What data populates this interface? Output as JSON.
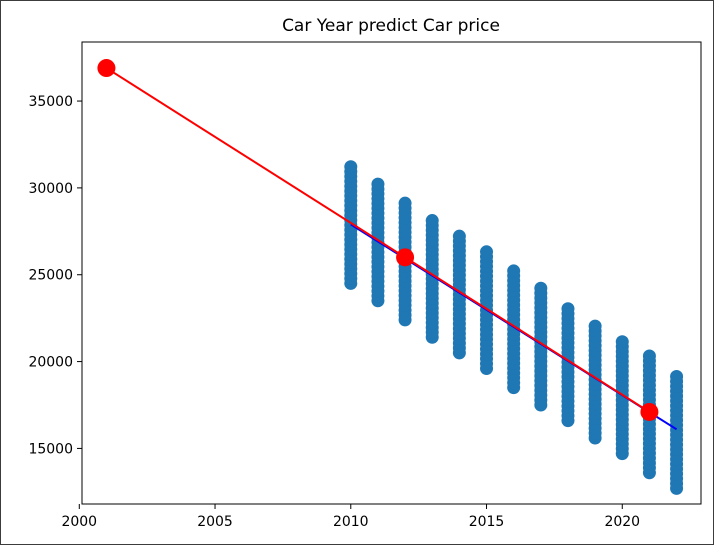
{
  "chart_data": {
    "type": "scatter",
    "title": "Car Year predict Car price",
    "xlabel": "",
    "ylabel": "",
    "xlim": [
      2000.1,
      2022.9
    ],
    "ylim": [
      11800,
      38400
    ],
    "x_ticks": [
      2000,
      2005,
      2010,
      2015,
      2020
    ],
    "y_ticks": [
      15000,
      20000,
      25000,
      30000,
      35000
    ],
    "grid": false,
    "legend": "none",
    "colors": {
      "scatter": "#1f77b4",
      "fit_line": "#0000ff",
      "prediction_line": "#ff0000",
      "prediction_points": "#ff0000"
    },
    "scatter_series": [
      {
        "x": 2010,
        "y_min": 24500,
        "y_max": 31300
      },
      {
        "x": 2011,
        "y_min": 23500,
        "y_max": 30400
      },
      {
        "x": 2012,
        "y_min": 22400,
        "y_max": 29300
      },
      {
        "x": 2013,
        "y_min": 21400,
        "y_max": 28300
      },
      {
        "x": 2014,
        "y_min": 20500,
        "y_max": 27400
      },
      {
        "x": 2015,
        "y_min": 19600,
        "y_max": 26400
      },
      {
        "x": 2016,
        "y_min": 18500,
        "y_max": 25400
      },
      {
        "x": 2017,
        "y_min": 17500,
        "y_max": 24300
      },
      {
        "x": 2018,
        "y_min": 16600,
        "y_max": 23200
      },
      {
        "x": 2019,
        "y_min": 15600,
        "y_max": 22300
      },
      {
        "x": 2020,
        "y_min": 14700,
        "y_max": 21400
      },
      {
        "x": 2021,
        "y_min": 13600,
        "y_max": 20400
      },
      {
        "x": 2022,
        "y_min": 12700,
        "y_max": 19400
      }
    ],
    "fit_line": {
      "x": [
        2010,
        2022
      ],
      "y": [
        27900,
        16100
      ]
    },
    "prediction_line": {
      "x": [
        2001,
        2012,
        2021
      ],
      "y": [
        36900,
        26000,
        17100
      ]
    },
    "prediction_points": {
      "x": [
        2001,
        2012,
        2021
      ],
      "y": [
        36900,
        26000,
        17100
      ]
    }
  }
}
